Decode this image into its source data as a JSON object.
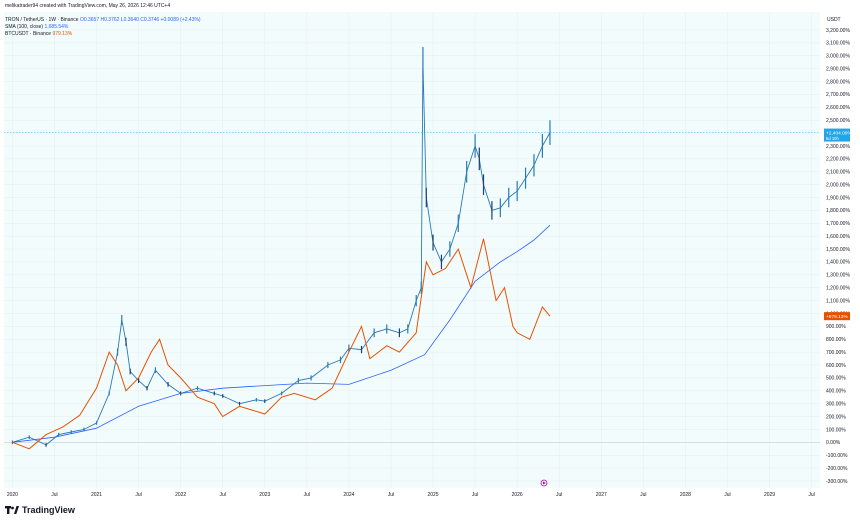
{
  "header": {
    "credit": "melikatrader94 created with TradingView.com, May 26, 2026 12:46 UTC+4",
    "main_title": "TRON / TetherUS · 1W · Binance",
    "ohlc": "O0.3657 H0.3762 L0.3640 C0.3746 +0.0089 (+2.43%)",
    "sma_label": "SMA (100, close)",
    "sma_value": "1,685.54%",
    "btc_label": "BTCUSDT · Binance",
    "btc_value": "979.13%"
  },
  "brand": {
    "name": "TradingView",
    "logo_icon": "tradingview-logo-icon"
  },
  "colors": {
    "candle": "#2a7ab6",
    "sma": "#2962ff",
    "btc": "#e65100",
    "background": "#f3fcfd",
    "grid": "#e4eef0",
    "price_tag": "#22a6e8"
  },
  "chart_data": {
    "type": "line",
    "y_unit": "USDT",
    "y_scale": "percent",
    "ylim": [
      -300,
      3200
    ],
    "y_ticks": [
      "3,200.00%",
      "3,100.00%",
      "3,000.00%",
      "2,900.00%",
      "2,800.00%",
      "2,700.00%",
      "2,600.00%",
      "2,500.00%",
      "2,400.00%",
      "2,300.00%",
      "2,200.00%",
      "2,100.00%",
      "2,000.00%",
      "1,900.00%",
      "1,800.00%",
      "1,700.00%",
      "1,600.00%",
      "1,500.00%",
      "1,400.00%",
      "1,300.00%",
      "1,200.00%",
      "1,100.00%",
      "1,000.00%",
      "900.00%",
      "800.00%",
      "700.00%",
      "600.00%",
      "500.00%",
      "400.00%",
      "300.00%",
      "200.00%",
      "100.00%",
      "0.00%",
      "-100.00%",
      "-200.00%",
      "-300.00%"
    ],
    "y_tick_values": [
      3200,
      3100,
      3000,
      2900,
      2800,
      2700,
      2600,
      2500,
      2400,
      2300,
      2200,
      2100,
      2000,
      1900,
      1800,
      1700,
      1600,
      1500,
      1400,
      1300,
      1200,
      1100,
      1000,
      900,
      800,
      700,
      600,
      500,
      400,
      300,
      200,
      100,
      0,
      -100,
      -200,
      -300
    ],
    "x_ticks": [
      "2020",
      "Jul",
      "2021",
      "Jul",
      "2022",
      "Jul",
      "2023",
      "Jul",
      "2024",
      "Jul",
      "2025",
      "Jul",
      "2026",
      "Jul",
      "2027",
      "Jul",
      "2028",
      "Jul",
      "2029",
      "Jul"
    ],
    "x_tick_values": [
      2020.0,
      2020.5,
      2021.0,
      2021.5,
      2022.0,
      2022.5,
      2023.0,
      2023.5,
      2024.0,
      2024.5,
      2025.0,
      2025.5,
      2026.0,
      2026.5,
      2027.0,
      2027.5,
      2028.0,
      2028.5,
      2029.0,
      2029.5
    ],
    "xlim": [
      2019.9,
      2029.6
    ],
    "grid": true,
    "series": [
      {
        "name": "TRON / TetherUS",
        "style": "candles",
        "x": [
          2020.0,
          2020.2,
          2020.4,
          2020.55,
          2020.7,
          2020.85,
          2021.0,
          2021.15,
          2021.25,
          2021.3,
          2021.35,
          2021.4,
          2021.5,
          2021.6,
          2021.7,
          2021.85,
          2022.0,
          2022.2,
          2022.4,
          2022.5,
          2022.7,
          2022.9,
          2023.0,
          2023.2,
          2023.4,
          2023.55,
          2023.75,
          2023.9,
          2024.0,
          2024.15,
          2024.3,
          2024.45,
          2024.6,
          2024.7,
          2024.8,
          2024.86,
          2024.88,
          2024.92,
          2025.0,
          2025.1,
          2025.2,
          2025.3,
          2025.4,
          2025.5,
          2025.55,
          2025.6,
          2025.7,
          2025.8,
          2025.9,
          2026.0,
          2026.1,
          2026.2,
          2026.3,
          2026.39
        ],
        "y": [
          0,
          40,
          -20,
          60,
          80,
          100,
          150,
          380,
          700,
          950,
          780,
          550,
          480,
          420,
          560,
          450,
          380,
          420,
          380,
          360,
          300,
          330,
          320,
          380,
          480,
          500,
          600,
          640,
          730,
          720,
          850,
          880,
          850,
          880,
          1100,
          1200,
          2950,
          1900,
          1550,
          1400,
          1500,
          1700,
          2100,
          2300,
          2200,
          2000,
          1800,
          1820,
          1900,
          1950,
          2050,
          2150,
          2300,
          2404
        ]
      },
      {
        "name": "SMA (100, close)",
        "style": "line",
        "x": [
          2020.0,
          2020.5,
          2021.0,
          2021.5,
          2022.0,
          2022.5,
          2023.0,
          2023.5,
          2024.0,
          2024.5,
          2024.9,
          2025.2,
          2025.5,
          2025.8,
          2026.0,
          2026.2,
          2026.39
        ],
        "y": [
          0,
          40,
          110,
          280,
          380,
          420,
          440,
          460,
          450,
          560,
          680,
          950,
          1250,
          1400,
          1480,
          1570,
          1685
        ]
      },
      {
        "name": "BTCUSDT",
        "style": "line",
        "x": [
          2020.0,
          2020.2,
          2020.4,
          2020.6,
          2020.8,
          2021.0,
          2021.15,
          2021.25,
          2021.35,
          2021.5,
          2021.65,
          2021.75,
          2021.85,
          2022.0,
          2022.2,
          2022.4,
          2022.5,
          2022.7,
          2022.85,
          2023.0,
          2023.2,
          2023.35,
          2023.6,
          2023.8,
          2024.0,
          2024.15,
          2024.25,
          2024.45,
          2024.6,
          2024.8,
          2024.92,
          2025.0,
          2025.15,
          2025.3,
          2025.45,
          2025.6,
          2025.75,
          2025.85,
          2025.95,
          2026.0,
          2026.15,
          2026.3,
          2026.39
        ],
        "y": [
          0,
          -50,
          60,
          120,
          210,
          420,
          700,
          600,
          400,
          500,
          700,
          800,
          600,
          500,
          350,
          300,
          200,
          280,
          250,
          220,
          350,
          380,
          330,
          420,
          700,
          900,
          650,
          750,
          700,
          850,
          1400,
          1300,
          1350,
          1500,
          1200,
          1580,
          1100,
          1200,
          900,
          850,
          800,
          1050,
          979
        ]
      }
    ],
    "last_values": [
      {
        "series": "TRON / TetherUS",
        "value": 2404,
        "label": "+2,404.00%",
        "sub": "5d 10h"
      },
      {
        "series": "BTCUSDT",
        "value": 979.13,
        "label": "+979.13%"
      }
    ]
  }
}
